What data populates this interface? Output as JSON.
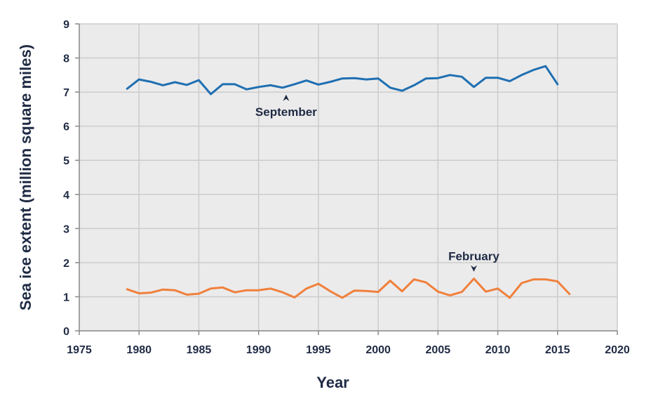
{
  "chart_data": {
    "type": "line",
    "title": "",
    "xlabel": "Year",
    "ylabel": "Sea ice extent (million square miles)",
    "xlim": [
      1975,
      2020
    ],
    "ylim": [
      0,
      9
    ],
    "xticks": [
      "1975",
      "1980",
      "1985",
      "1990",
      "1995",
      "2000",
      "2005",
      "2010",
      "2015",
      "2020"
    ],
    "yticks": [
      "0",
      "1",
      "2",
      "3",
      "4",
      "5",
      "6",
      "7",
      "8",
      "9"
    ],
    "grid": true,
    "colors": {
      "september": "#1f6fb2",
      "february": "#f0803c",
      "grid": "#cccccc",
      "plot_bg": "#ebebeb",
      "text": "#1f2a44"
    },
    "series": [
      {
        "key": "september",
        "x": [
          1979,
          1980,
          1981,
          1982,
          1983,
          1984,
          1985,
          1986,
          1987,
          1988,
          1989,
          1990,
          1991,
          1992,
          1993,
          1994,
          1995,
          1996,
          1997,
          1998,
          1999,
          2000,
          2001,
          2002,
          2003,
          2004,
          2005,
          2006,
          2007,
          2008,
          2009,
          2010,
          2011,
          2012,
          2013,
          2014,
          2015
        ],
        "values": [
          7.1,
          7.37,
          7.3,
          7.2,
          7.29,
          7.21,
          7.35,
          6.94,
          7.23,
          7.23,
          7.08,
          7.15,
          7.2,
          7.13,
          7.23,
          7.34,
          7.22,
          7.3,
          7.4,
          7.41,
          7.37,
          7.4,
          7.13,
          7.04,
          7.2,
          7.4,
          7.41,
          7.5,
          7.45,
          7.15,
          7.42,
          7.42,
          7.32,
          7.5,
          7.65,
          7.76,
          7.23
        ]
      },
      {
        "key": "february",
        "x": [
          1979,
          1980,
          1981,
          1982,
          1983,
          1984,
          1985,
          1986,
          1987,
          1988,
          1989,
          1990,
          1991,
          1992,
          1993,
          1994,
          1995,
          1996,
          1997,
          1998,
          1999,
          2000,
          2001,
          2002,
          2003,
          2004,
          2005,
          2006,
          2007,
          2008,
          2009,
          2010,
          2011,
          2012,
          2013,
          2014,
          2015,
          2016
        ],
        "values": [
          1.22,
          1.1,
          1.12,
          1.21,
          1.19,
          1.06,
          1.09,
          1.24,
          1.27,
          1.13,
          1.19,
          1.19,
          1.24,
          1.13,
          0.98,
          1.24,
          1.38,
          1.16,
          0.97,
          1.18,
          1.17,
          1.14,
          1.47,
          1.16,
          1.51,
          1.42,
          1.15,
          1.04,
          1.14,
          1.53,
          1.15,
          1.24,
          0.97,
          1.4,
          1.51,
          1.51,
          1.45,
          1.08
        ]
      }
    ],
    "annotations": [
      {
        "key": "september",
        "text": "September",
        "x": 1992.3,
        "y": 7.13,
        "placement": "below"
      },
      {
        "key": "february",
        "text": "February",
        "x": 2008.0,
        "y": 1.53,
        "placement": "above"
      }
    ]
  }
}
